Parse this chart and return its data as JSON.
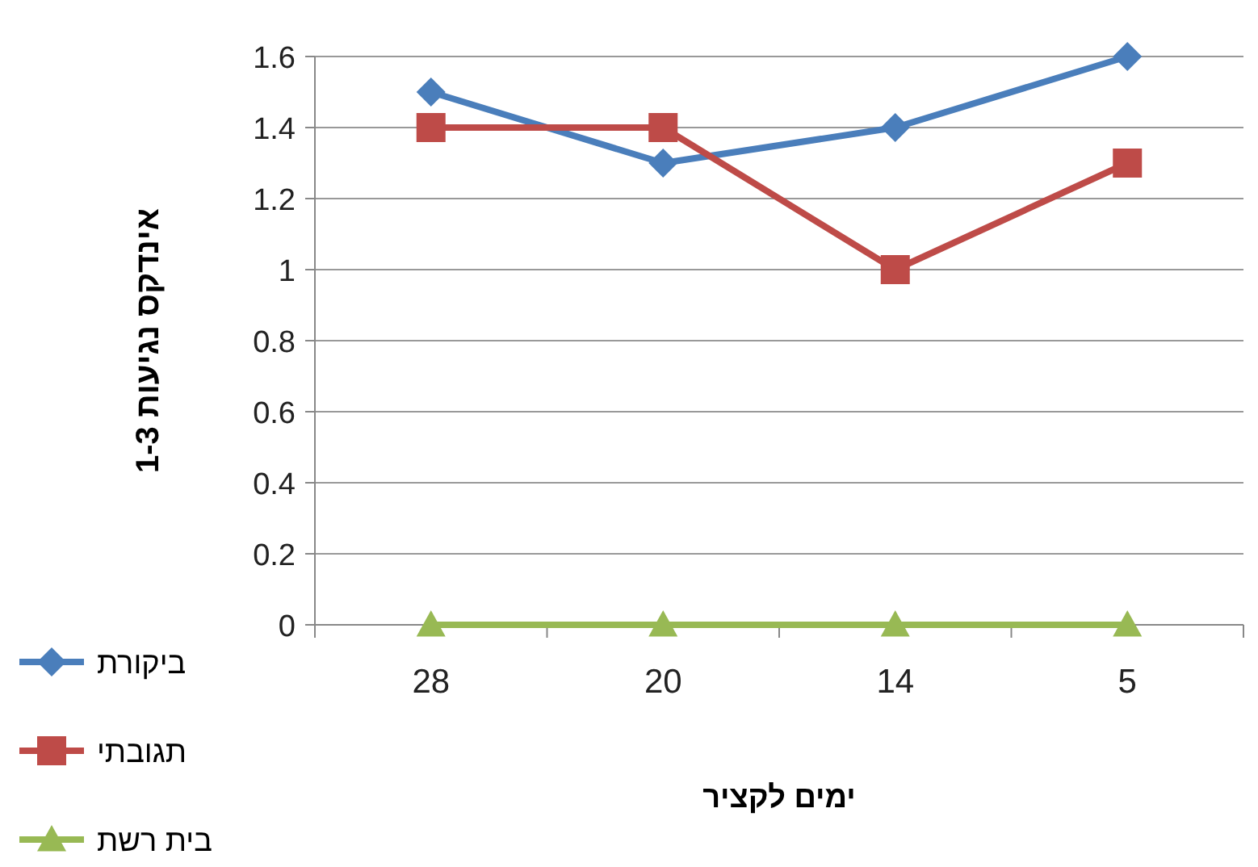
{
  "chart_data": {
    "type": "line",
    "xlabel": "ימים לקציר",
    "ylabel": "אינדקס נגיעות 1-3",
    "categories": [
      "28",
      "20",
      "14",
      "5"
    ],
    "series": [
      {
        "name": "ביקורת",
        "color": "#4a7ebb",
        "marker": "diamond",
        "values": [
          1.5,
          1.3,
          1.4,
          1.6
        ]
      },
      {
        "name": "תגובתי",
        "color": "#be4b48",
        "marker": "square",
        "values": [
          1.4,
          1.4,
          1.0,
          1.3
        ]
      },
      {
        "name": "בית רשת",
        "color": "#98b954",
        "marker": "triangle",
        "values": [
          0,
          0,
          0,
          0
        ]
      }
    ],
    "ylim": [
      0,
      1.6
    ],
    "yticks": [
      0,
      0.2,
      0.4,
      0.6,
      0.8,
      1,
      1.2,
      1.4,
      1.6
    ],
    "grid": "y",
    "legend": "left"
  }
}
